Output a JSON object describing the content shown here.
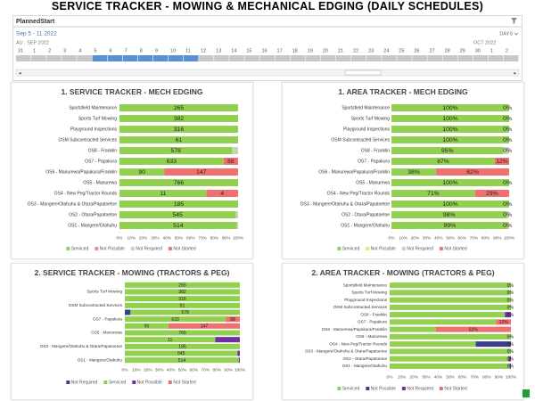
{
  "page_title": "SERVICE TRACKER - MOWING & MECHANICAL EDGING (DAILY SCHEDULES)",
  "slicer": {
    "field": "PlannedStart",
    "range": "Sep 5 - 11 2022",
    "granularity": "DAYS",
    "month_left": "AU , SEP 2022",
    "month_right": "OCT 2022",
    "days": [
      31,
      1,
      2,
      3,
      4,
      5,
      6,
      7,
      8,
      9,
      10,
      11,
      12,
      13,
      14,
      15,
      16,
      17,
      18,
      19,
      20,
      21,
      22,
      23,
      24,
      25,
      26,
      27,
      28,
      29,
      30,
      1,
      2
    ]
  },
  "chart_data": [
    {
      "type": "bar",
      "orientation": "horizontal",
      "stacking": "percent",
      "title": "1. SERVICE TRACKER - MECH EDGING",
      "categories": [
        "Sportsfield Maintenance",
        "Sports Turf Mowing",
        "Playground Inspections",
        "OSM Subcontracted Services",
        "OS8 - Franklin",
        "OS7 - Papakura",
        "OS6 - Manurewa/Papakura/Franklin",
        "OS5 - Manurewa",
        "OS4 - New Peg/Tractor Rounds",
        "OS3 - Mangere/Otahuhu & Otara/Papatoetoe",
        "OS2 - Otara/Papatoetoe",
        "OS1 - Mangere/Otahuhu"
      ],
      "series": [
        {
          "name": "Serviced",
          "color": "#92d050",
          "labels": true,
          "values": [
            265,
            382,
            316,
            61,
            578,
            633,
            90,
            766,
            11,
            185,
            545,
            514
          ]
        },
        {
          "name": "Not Possible",
          "color": "#f08a94",
          "labels": false,
          "values": [
            0,
            0,
            0,
            0,
            0,
            0,
            0,
            0,
            0,
            0,
            0,
            0
          ]
        },
        {
          "name": "Not Required",
          "color": "#c9d6b4",
          "labels": false,
          "values": [
            0,
            0,
            0,
            0,
            30,
            0,
            0,
            0,
            0,
            0,
            11,
            5
          ]
        },
        {
          "name": "Not Started",
          "color": "#f07070",
          "labels": true,
          "values": [
            0,
            0,
            0,
            0,
            0,
            88,
            147,
            0,
            4,
            0,
            0,
            0
          ]
        }
      ],
      "xlim": [
        0,
        100
      ],
      "xticks": [
        {
          "value": 0,
          "label": "0%"
        },
        {
          "value": 10,
          "label": "10%"
        },
        {
          "value": 20,
          "label": "20%"
        },
        {
          "value": 30,
          "label": "30%"
        },
        {
          "value": 40,
          "label": "40%"
        },
        {
          "value": 50,
          "label": "50%"
        },
        {
          "value": 60,
          "label": "60%"
        },
        {
          "value": 70,
          "label": "70%"
        },
        {
          "value": 80,
          "label": "80%"
        },
        {
          "value": 90,
          "label": "90%"
        },
        {
          "value": 100,
          "label": "100%"
        }
      ],
      "legend": "bottom"
    },
    {
      "type": "bar",
      "orientation": "horizontal",
      "stacking": "percent",
      "title": "1. AREA TRACKER - MECH EDGING",
      "categories": [
        "Sportsfield Maintenance",
        "Sports Turf Mowing",
        "Playground Inspections",
        "OSM Subcontracted Services",
        "OS8 - Franklin",
        "OS7 - Papakura",
        "OS6 - Manurewa/Papakura/Franklin",
        "OS5 - Manurewa",
        "OS4 - New Peg/Tractor Rounds",
        "OS3 - Mangere/Otahuhu & Otara/Papatoetoe",
        "OS2 - Otara/Papatoetoe",
        "OS1 - Mangere/Otahuhu"
      ],
      "series": [
        {
          "name": "Serviced",
          "color": "#92d050",
          "values": [
            100,
            100,
            100,
            100,
            95,
            87,
            38,
            100,
            71,
            100,
            98,
            99
          ],
          "value_labels": [
            "100%",
            "100%",
            "100%",
            "100%",
            "95%",
            "87%",
            "38%",
            "100%",
            "71%",
            "100%",
            "98%",
            "99%"
          ]
        },
        {
          "name": "Not Possible",
          "color": "#f2e55c",
          "values": [
            0,
            0,
            0,
            0,
            0,
            0,
            0,
            0,
            0,
            0,
            0,
            0
          ]
        },
        {
          "name": "Not Required",
          "color": "#c9d6b4",
          "values": [
            0,
            0,
            0,
            0,
            5,
            0,
            0,
            0,
            0,
            0,
            2,
            1
          ]
        },
        {
          "name": "Not Started",
          "color": "#f07070",
          "values": [
            0,
            0,
            0,
            0,
            0,
            12,
            62,
            0,
            29,
            0,
            0,
            0
          ],
          "value_labels": [
            "0%",
            "0%",
            "0%",
            "0%",
            "0%",
            "12%",
            "62%",
            "0%",
            "29%",
            "0%",
            "0%",
            "0%"
          ]
        }
      ],
      "xlim": [
        0,
        100
      ],
      "xticks": [
        {
          "value": 0,
          "label": "0%"
        },
        {
          "value": 10,
          "label": "10%"
        },
        {
          "value": 20,
          "label": "20%"
        },
        {
          "value": 30,
          "label": "30%"
        },
        {
          "value": 40,
          "label": "40%"
        },
        {
          "value": 50,
          "label": "50%"
        },
        {
          "value": 60,
          "label": "60%"
        },
        {
          "value": 70,
          "label": "70%"
        },
        {
          "value": 80,
          "label": "80%"
        },
        {
          "value": 90,
          "label": "90%"
        },
        {
          "value": 100,
          "label": "100%"
        }
      ],
      "legend": "bottom"
    },
    {
      "type": "bar",
      "orientation": "horizontal",
      "stacking": "percent",
      "title": "2. SERVICE TRACKER - MOWING (TRACTORS & PEG)",
      "categories": [
        null,
        "Sports Turf Mowing",
        null,
        "OSM Subcontracted Services",
        null,
        "OS7 - Papakura",
        null,
        "OS5 - Manurewa",
        null,
        "OS3 - Mangere/Otahuhu & Otara/Papatoetoe",
        null,
        "OS1 - Mangere/Otahuhu"
      ],
      "series": [
        {
          "name": "Not Required",
          "color": "#3a3f8c",
          "labels": false,
          "values": [
            0,
            0,
            0,
            0,
            30,
            0,
            0,
            0,
            0,
            0,
            0,
            0
          ]
        },
        {
          "name": "Serviced",
          "color": "#92d050",
          "labels": true,
          "values": [
            265,
            382,
            316,
            61,
            578,
            633,
            90,
            766,
            11,
            185,
            545,
            514
          ]
        },
        {
          "name": "Not Possible",
          "color": "#7030a0",
          "labels": false,
          "values": [
            0,
            0,
            0,
            0,
            0,
            0,
            0,
            0,
            3,
            0,
            11,
            5
          ]
        },
        {
          "name": "Not Started",
          "color": "#f07070",
          "labels": true,
          "values": [
            0,
            0,
            0,
            0,
            0,
            88,
            147,
            0,
            0,
            0,
            0,
            0
          ]
        }
      ],
      "xlim": [
        0,
        100
      ],
      "xticks": [
        {
          "value": 0,
          "label": "0%"
        },
        {
          "value": 10,
          "label": "10%"
        },
        {
          "value": 20,
          "label": "20%"
        },
        {
          "value": 30,
          "label": "30%"
        },
        {
          "value": 40,
          "label": "40%"
        },
        {
          "value": 50,
          "label": "50%"
        },
        {
          "value": 60,
          "label": "60%"
        },
        {
          "value": 70,
          "label": "70%"
        },
        {
          "value": 80,
          "label": "80%"
        },
        {
          "value": 90,
          "label": "90%"
        },
        {
          "value": 100,
          "label": "100%"
        }
      ],
      "legend": "bottom"
    },
    {
      "type": "bar",
      "orientation": "horizontal",
      "stacking": "percent",
      "title": "2. AREA TRACKER - MOWING (TRACTORS & PEG)",
      "categories": [
        "Sportsfield Maintenance",
        "Sports Turf Mowing",
        "Playground Inspections",
        "OSM Subcontracted Services",
        "OS8 - Franklin",
        "OS7 - Papakura",
        "OS6 - Manurewa/Papakura/Franklin",
        "OS5 - Manurewa",
        "OS4 - New Peg/Tractor Rounds",
        "OS3 - Mangere/Otahuhu & Otara/Papatoetoe",
        "OS2 - Otara/Papatoetoe",
        "OS1 - Mangere/Otahuhu"
      ],
      "series": [
        {
          "name": "Serviced",
          "color": "#92d050",
          "values": [
            100,
            100,
            100,
            100,
            95,
            87,
            38,
            100,
            71,
            100,
            98,
            99
          ]
        },
        {
          "name": "Not Possible",
          "color": "#3a3f8c",
          "values": [
            0,
            0,
            0,
            0,
            0,
            0,
            0,
            0,
            29,
            0,
            0,
            0
          ]
        },
        {
          "name": "Not Required",
          "color": "#7030a0",
          "values": [
            0,
            0,
            0,
            0,
            5,
            0,
            0,
            0,
            0,
            0,
            2,
            1
          ]
        },
        {
          "name": "Not Started",
          "color": "#f07070",
          "values": [
            0,
            0,
            0,
            0,
            0,
            12,
            62,
            0,
            0,
            0,
            0,
            0
          ],
          "value_labels": [
            "0%",
            "0%",
            "0%",
            "0%",
            "0%",
            "12%",
            "62%",
            "0%",
            "0%",
            "0%",
            "0%",
            "0%"
          ]
        }
      ],
      "xlim": [
        0,
        100
      ],
      "xticks": [
        {
          "value": 0,
          "label": "0%"
        },
        {
          "value": 10,
          "label": "10%"
        },
        {
          "value": 20,
          "label": "20%"
        },
        {
          "value": 30,
          "label": "30%"
        },
        {
          "value": 40,
          "label": "40%"
        },
        {
          "value": 50,
          "label": "50%"
        },
        {
          "value": 60,
          "label": "60%"
        },
        {
          "value": 70,
          "label": "70%"
        },
        {
          "value": 80,
          "label": "80%"
        },
        {
          "value": 90,
          "label": "90%"
        },
        {
          "value": 100,
          "label": "100%"
        }
      ],
      "legend": "bottom"
    }
  ]
}
